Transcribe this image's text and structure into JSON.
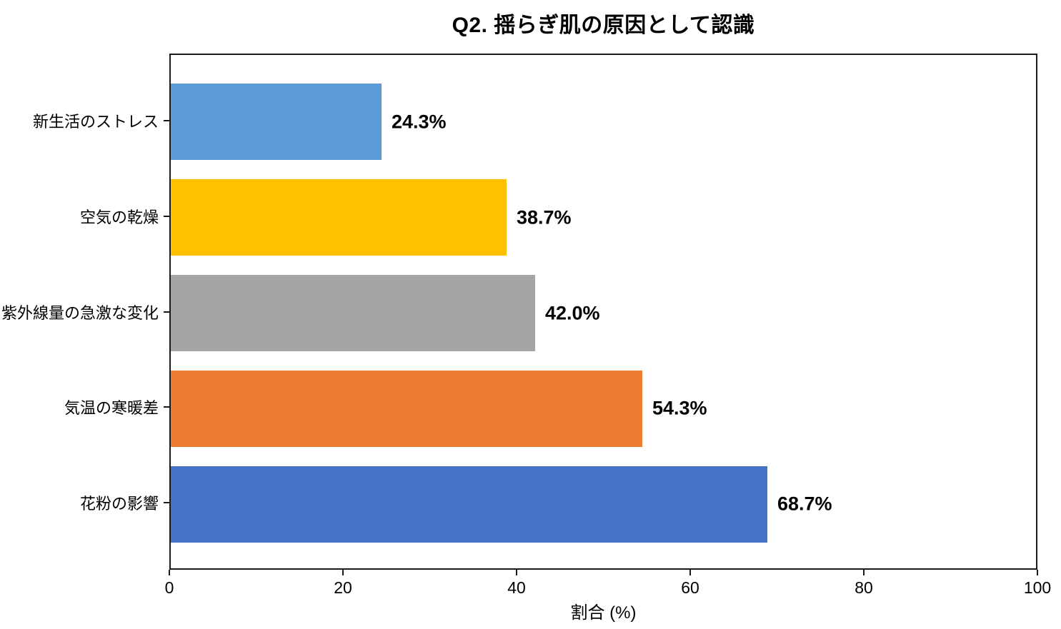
{
  "chart_data": {
    "type": "bar",
    "orientation": "horizontal",
    "title": "Q2. 揺らぎ肌の原因として認識",
    "xlabel": "割合 (%)",
    "ylabel": "",
    "categories_order": "top-to-bottom",
    "categories": [
      "新生活のストレス",
      "空気の乾燥",
      "紫外線量の急激な変化",
      "気温の寒暖差",
      "花粉の影響"
    ],
    "values": [
      24.3,
      38.7,
      42.0,
      54.3,
      68.7
    ],
    "value_labels": [
      "24.3%",
      "38.7%",
      "42.0%",
      "54.3%",
      "68.7%"
    ],
    "bar_colors": [
      "#5B9BD5",
      "#FFC000",
      "#A5A5A5",
      "#ED7D31",
      "#4472C4"
    ],
    "xlim": [
      0,
      100
    ],
    "x_ticks": [
      0,
      20,
      40,
      60,
      80,
      100
    ],
    "grid": false,
    "legend": false,
    "frame": true
  },
  "style": {
    "text_color": "#000000",
    "axis_color": "#1a1a1a",
    "background": "#ffffff"
  }
}
